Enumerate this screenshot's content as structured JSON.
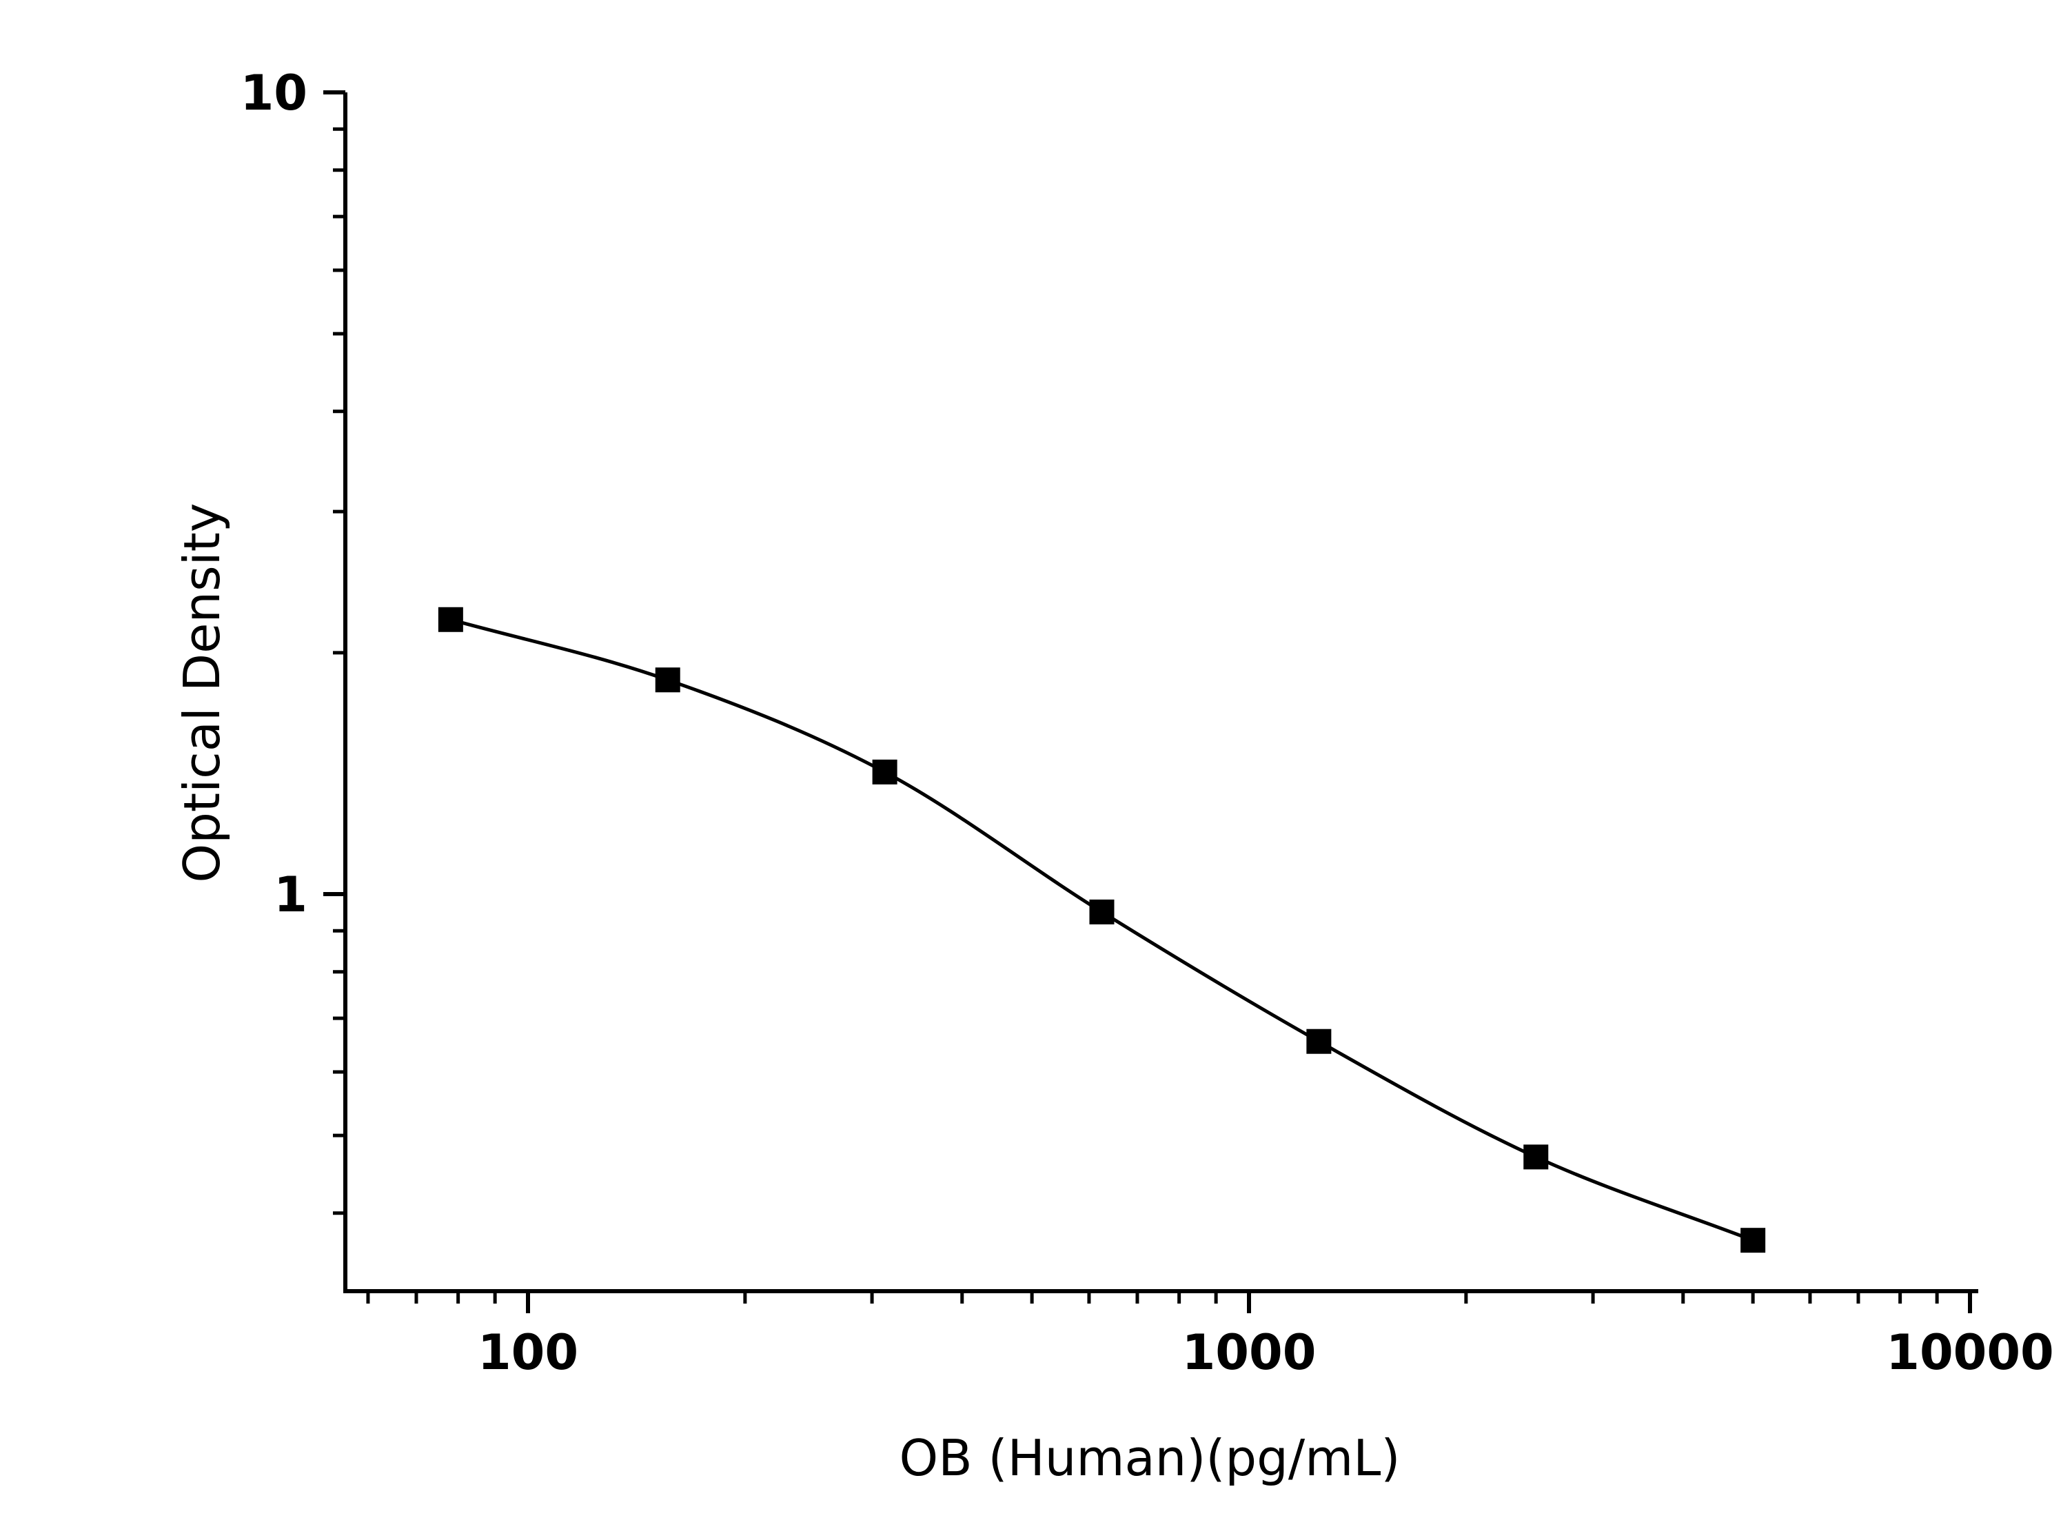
{
  "chart_data": {
    "type": "line",
    "title": "",
    "xlabel": "OB (Human)(pg/mL)",
    "ylabel": "Optical Density",
    "x_scale": "log",
    "y_scale": "log",
    "xlim": [
      57,
      10000
    ],
    "ylim": [
      0.3255,
      10
    ],
    "x_tick_labels": [
      "100",
      "1000",
      "10000"
    ],
    "y_tick_labels": [
      "1",
      "10"
    ],
    "grid": false,
    "legend": "none",
    "marker": "square",
    "series": [
      {
        "x": [
          78.125,
          156.25,
          312.5,
          625,
          1250,
          2500,
          5000
        ],
        "y": [
          2.2,
          1.85,
          1.42,
          0.95,
          0.655,
          0.47,
          0.37
        ]
      }
    ],
    "colors": {
      "line": "#000000",
      "marker": "#000000",
      "axis": "#000000"
    }
  }
}
